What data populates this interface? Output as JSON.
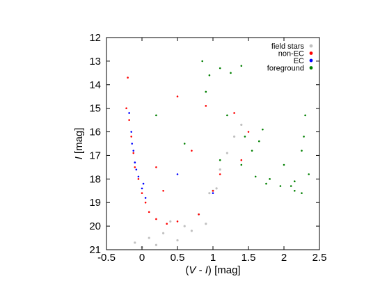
{
  "chart_data": {
    "type": "scatter",
    "title": "",
    "xlabel_parts": [
      "(",
      "V",
      " - ",
      "I",
      ") [mag]"
    ],
    "ylabel_parts": [
      "I",
      " [mag]"
    ],
    "xlim": [
      -0.5,
      2.5
    ],
    "ylim": [
      21,
      12
    ],
    "y_inverted": true,
    "grid": false,
    "legend_position": "top-right",
    "x_ticks": [
      -0.5,
      0,
      0.5,
      1,
      1.5,
      2,
      2.5
    ],
    "x_tick_labels": [
      "-0.5",
      "0",
      "0.5",
      "1",
      "1.5",
      "2",
      "2.5"
    ],
    "y_ticks": [
      12,
      13,
      14,
      15,
      16,
      17,
      18,
      19,
      20,
      21
    ],
    "y_tick_labels": [
      "12",
      "13",
      "14",
      "15",
      "16",
      "17",
      "18",
      "19",
      "20",
      "21"
    ],
    "series": [
      {
        "name": "field stars",
        "color": "#c0c0c0",
        "description": "dense grey cloud: main sequence near V-I 0 to 0.3, I 18.5-21, red clump near V-I 1.0, I 18.5, red giant branch up to I 15.5",
        "points": [
          [
            0.1,
            20.5
          ],
          [
            0.2,
            20.8
          ],
          [
            0.3,
            20.3
          ],
          [
            0.5,
            20.6
          ],
          [
            0.7,
            20.2
          ],
          [
            0.9,
            19.9
          ],
          [
            1.0,
            18.5
          ],
          [
            0.95,
            18.6
          ],
          [
            1.05,
            18.4
          ],
          [
            1.1,
            17.6
          ],
          [
            1.2,
            16.9
          ],
          [
            1.3,
            16.2
          ],
          [
            1.4,
            15.7
          ],
          [
            0.8,
            19.5
          ],
          [
            0.6,
            20.0
          ],
          [
            0.4,
            19.8
          ],
          [
            0.0,
            20.9
          ],
          [
            -0.1,
            20.7
          ]
        ]
      },
      {
        "name": "non-EC",
        "color": "#ff0000",
        "description": "red points tracing the blue main sequence from I 13.7 to 20, plus scattered stars",
        "points": [
          [
            -0.2,
            13.7
          ],
          [
            -0.22,
            15.0
          ],
          [
            -0.18,
            15.5
          ],
          [
            -0.15,
            16.2
          ],
          [
            -0.12,
            16.9
          ],
          [
            -0.1,
            17.5
          ],
          [
            -0.05,
            18.0
          ],
          [
            0.0,
            18.6
          ],
          [
            0.05,
            19.0
          ],
          [
            0.1,
            19.4
          ],
          [
            0.2,
            19.7
          ],
          [
            0.35,
            19.9
          ],
          [
            0.5,
            19.8
          ],
          [
            0.8,
            19.5
          ],
          [
            1.0,
            18.5
          ],
          [
            1.3,
            15.2
          ],
          [
            1.5,
            16.0
          ],
          [
            0.5,
            14.5
          ],
          [
            0.2,
            17.5
          ],
          [
            0.7,
            16.8
          ],
          [
            1.1,
            17.8
          ],
          [
            0.3,
            18.5
          ],
          [
            1.4,
            17.2
          ],
          [
            0.9,
            14.9
          ]
        ]
      },
      {
        "name": "EC",
        "color": "#0000ff",
        "description": "blue points concentrated along the upper main sequence",
        "points": [
          [
            -0.18,
            15.2
          ],
          [
            -0.15,
            16.0
          ],
          [
            -0.12,
            16.8
          ],
          [
            -0.1,
            17.3
          ],
          [
            -0.05,
            17.9
          ],
          [
            0.0,
            18.4
          ],
          [
            0.05,
            18.8
          ],
          [
            -0.14,
            16.5
          ],
          [
            -0.08,
            17.6
          ],
          [
            0.02,
            18.2
          ],
          [
            0.5,
            17.8
          ],
          [
            1.0,
            18.6
          ]
        ]
      },
      {
        "name": "foreground",
        "color": "#008000",
        "description": "sparse green points at redder colours",
        "points": [
          [
            0.85,
            13.0
          ],
          [
            0.95,
            13.6
          ],
          [
            1.1,
            13.3
          ],
          [
            1.25,
            13.5
          ],
          [
            1.4,
            13.2
          ],
          [
            0.9,
            14.3
          ],
          [
            0.2,
            15.3
          ],
          [
            1.2,
            15.3
          ],
          [
            1.7,
            15.9
          ],
          [
            1.65,
            16.4
          ],
          [
            1.55,
            16.8
          ],
          [
            1.4,
            17.4
          ],
          [
            1.6,
            17.9
          ],
          [
            1.8,
            18.0
          ],
          [
            2.0,
            17.4
          ],
          [
            2.1,
            18.3
          ],
          [
            2.15,
            18.5
          ],
          [
            2.28,
            16.2
          ],
          [
            2.3,
            15.3
          ],
          [
            2.35,
            17.8
          ],
          [
            2.25,
            18.6
          ],
          [
            1.95,
            18.3
          ],
          [
            2.25,
            16.8
          ],
          [
            2.15,
            18.1
          ],
          [
            1.1,
            17.2
          ],
          [
            0.6,
            16.5
          ],
          [
            1.45,
            16.2
          ],
          [
            1.75,
            18.2
          ]
        ]
      }
    ]
  }
}
